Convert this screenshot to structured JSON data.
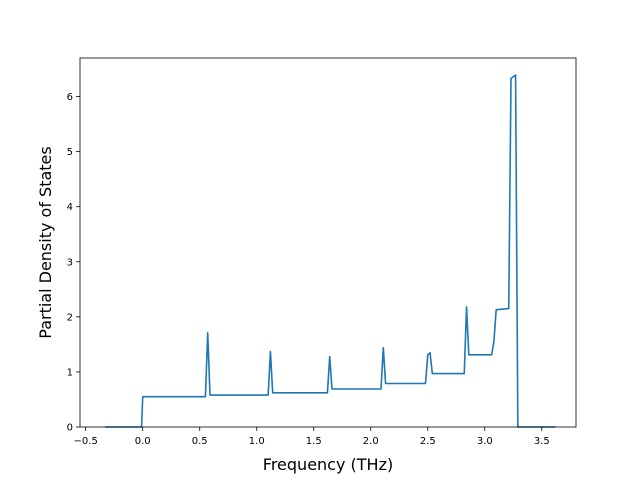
{
  "chart_data": {
    "type": "line",
    "title": "",
    "xlabel": "Frequency (THz)",
    "ylabel": "Partial Density of States",
    "xlim": [
      -0.55,
      3.8
    ],
    "ylim": [
      0,
      6.7
    ],
    "xticks": [
      -0.5,
      0.0,
      0.5,
      1.0,
      1.5,
      2.0,
      2.5,
      3.0,
      3.5
    ],
    "xtick_labels": [
      "−0.5",
      "0.0",
      "0.5",
      "1.0",
      "1.5",
      "2.0",
      "2.5",
      "3.0",
      "3.5"
    ],
    "yticks": [
      0,
      1,
      2,
      3,
      4,
      5,
      6
    ],
    "ytick_labels": [
      "0",
      "1",
      "2",
      "3",
      "4",
      "5",
      "6"
    ],
    "grid": false,
    "color": "#1f77b4",
    "series": [
      {
        "x": [
          -0.33,
          -0.01,
          0.0,
          0.01,
          0.55,
          0.57,
          0.59,
          1.1,
          1.12,
          1.14,
          1.62,
          1.64,
          1.66,
          2.09,
          2.11,
          2.13,
          2.48,
          2.5,
          2.52,
          2.54,
          2.82,
          2.84,
          2.86,
          3.06,
          3.08,
          3.1,
          3.21,
          3.23,
          3.27,
          3.29,
          3.62
        ],
        "y": [
          0.0,
          0.0,
          0.55,
          0.55,
          0.55,
          1.71,
          0.58,
          0.58,
          1.37,
          0.62,
          0.62,
          1.28,
          0.69,
          0.69,
          1.44,
          0.79,
          0.79,
          1.31,
          1.35,
          0.97,
          0.97,
          2.18,
          1.31,
          1.31,
          1.55,
          2.13,
          2.15,
          6.33,
          6.39,
          0.0,
          0.0
        ]
      }
    ]
  }
}
